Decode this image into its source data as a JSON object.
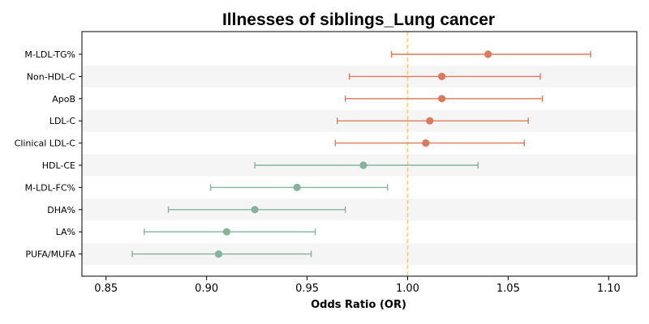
{
  "chart_data": {
    "type": "forest",
    "title": "Illnesses of siblings_Lung cancer",
    "xlabel": "Odds Ratio (OR)",
    "xlim": [
      0.838,
      1.114
    ],
    "xticks": [
      "0.85",
      "0.90",
      "0.95",
      "1.00",
      "1.05",
      "1.10"
    ],
    "xtick_values": [
      0.85,
      0.9,
      0.95,
      1.0,
      1.05,
      1.1
    ],
    "reference_line": 1.0,
    "reference_color": "#f0c987",
    "band_color": "#f5f5f5",
    "colors": {
      "positive": "#dc7a5e",
      "negative": "#86b49b"
    },
    "rows": [
      {
        "label": "M-LDL-TG%",
        "or": 1.04,
        "lo": 0.992,
        "hi": 1.091,
        "group": "positive"
      },
      {
        "label": "Non-HDL-C",
        "or": 1.017,
        "lo": 0.971,
        "hi": 1.066,
        "group": "positive"
      },
      {
        "label": "ApoB",
        "or": 1.017,
        "lo": 0.969,
        "hi": 1.067,
        "group": "positive"
      },
      {
        "label": "LDL-C",
        "or": 1.011,
        "lo": 0.965,
        "hi": 1.06,
        "group": "positive"
      },
      {
        "label": "Clinical LDL-C",
        "or": 1.009,
        "lo": 0.964,
        "hi": 1.058,
        "group": "positive"
      },
      {
        "label": "HDL-CE",
        "or": 0.978,
        "lo": 0.924,
        "hi": 1.035,
        "group": "negative"
      },
      {
        "label": "M-LDL-FC%",
        "or": 0.945,
        "lo": 0.902,
        "hi": 0.99,
        "group": "negative"
      },
      {
        "label": "DHA%",
        "or": 0.924,
        "lo": 0.881,
        "hi": 0.969,
        "group": "negative"
      },
      {
        "label": "LA%",
        "or": 0.91,
        "lo": 0.869,
        "hi": 0.954,
        "group": "negative"
      },
      {
        "label": "PUFA/MUFA",
        "or": 0.906,
        "lo": 0.863,
        "hi": 0.952,
        "group": "negative"
      }
    ]
  }
}
